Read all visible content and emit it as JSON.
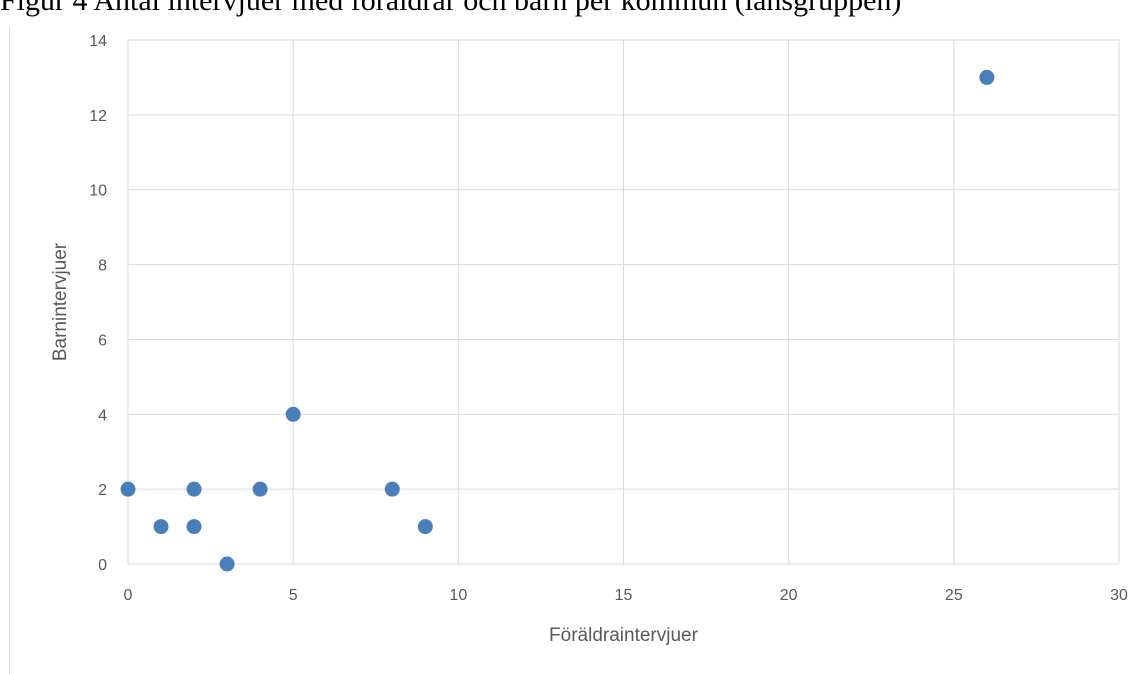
{
  "header": {
    "text": "Figur 4 Antal intervjuer med föräldrar och barn per kommun (länsgruppen)"
  },
  "chart_data": {
    "type": "scatter",
    "title": "",
    "xlabel": "Föräldraintervjuer",
    "ylabel": "Barnintervjuer",
    "xlim": [
      0,
      30
    ],
    "ylim": [
      0,
      14
    ],
    "x_ticks": [
      0,
      5,
      10,
      15,
      20,
      25,
      30
    ],
    "y_ticks": [
      0,
      2,
      4,
      6,
      8,
      10,
      12,
      14
    ],
    "grid": true,
    "legend": "none",
    "marker_color": "#4a7ebb",
    "grid_color": "#d9d9d9",
    "series": [
      {
        "points": [
          {
            "x": 0,
            "y": 2
          },
          {
            "x": 1,
            "y": 1
          },
          {
            "x": 2,
            "y": 2
          },
          {
            "x": 2,
            "y": 1
          },
          {
            "x": 3,
            "y": 0
          },
          {
            "x": 4,
            "y": 2
          },
          {
            "x": 5,
            "y": 4
          },
          {
            "x": 8,
            "y": 2
          },
          {
            "x": 9,
            "y": 1
          },
          {
            "x": 26,
            "y": 13
          }
        ]
      }
    ]
  }
}
